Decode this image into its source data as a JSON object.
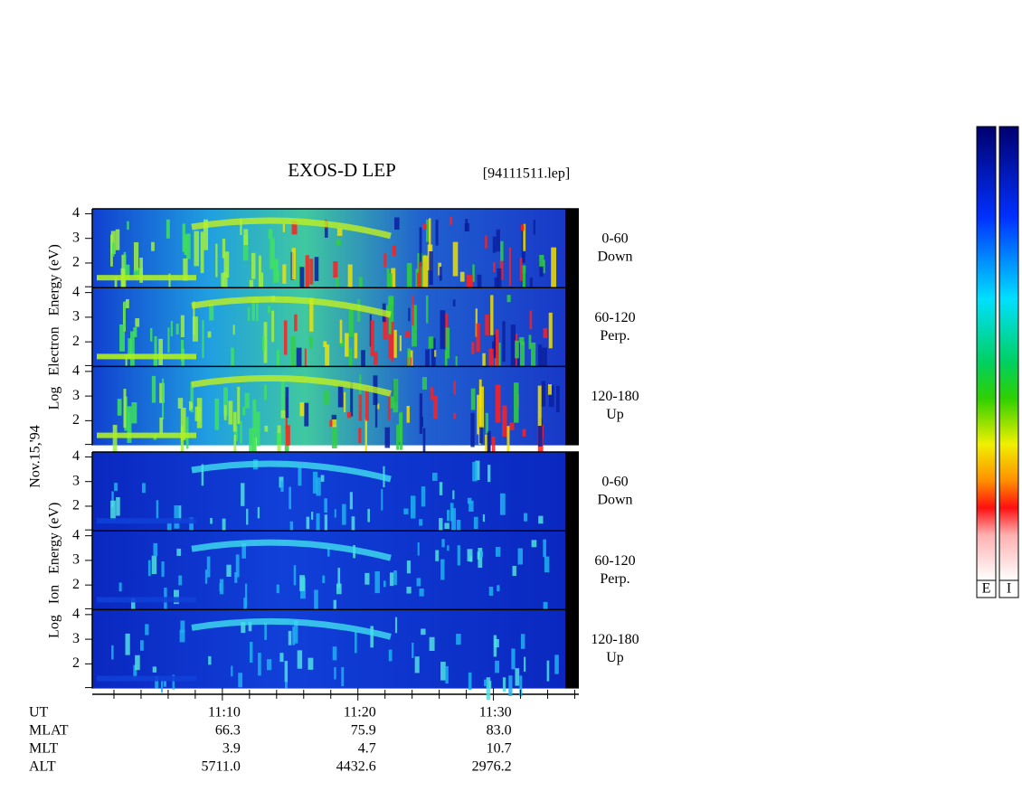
{
  "chart_data": {
    "type": "spectrogram",
    "title": "EXOS-D LEP",
    "file": "[94111511.lep]",
    "date": "Nov.15,'94",
    "groups": [
      {
        "label": "Log   Electron   Energy (eV)",
        "panels": [
          {
            "angle": "0-60",
            "direction": "Down"
          },
          {
            "angle": "60-120",
            "direction": "Perp."
          },
          {
            "angle": "120-180",
            "direction": "Up"
          }
        ]
      },
      {
        "label": "Log   Ion   Energy (eV)",
        "panels": [
          {
            "angle": "0-60",
            "direction": "Down"
          },
          {
            "angle": "60-120",
            "direction": "Perp."
          },
          {
            "angle": "120-180",
            "direction": "Up"
          }
        ]
      }
    ],
    "ylim": [
      1,
      4.2
    ],
    "yticks": [
      2,
      3,
      4
    ],
    "xlim": [
      660.4,
      696.3
    ],
    "xticks": [
      {
        "value": 670,
        "label": "11:10"
      },
      {
        "value": 680,
        "label": "11:20"
      },
      {
        "value": 690,
        "label": "11:30"
      }
    ],
    "xminorticks": [
      662,
      664,
      666,
      668,
      672,
      674,
      676,
      678,
      682,
      684,
      686,
      688,
      692,
      694,
      696
    ],
    "ephemeris": [
      {
        "name": "UT"
      },
      {
        "name": "MLAT",
        "values": [
          "66.3",
          "75.9",
          "83.0"
        ]
      },
      {
        "name": "MLT",
        "values": [
          "3.9",
          "4.7",
          "10.7"
        ]
      },
      {
        "name": "ALT",
        "values": [
          "5711.0",
          "4432.6",
          "2976.2"
        ]
      }
    ],
    "colorbars": [
      "E",
      "I"
    ]
  }
}
